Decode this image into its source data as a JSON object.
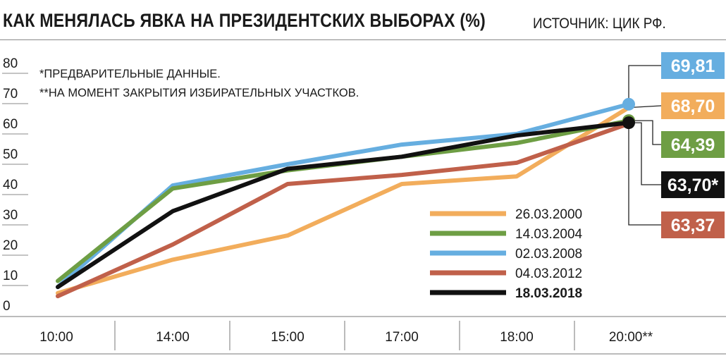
{
  "header": {
    "title": "КАК МЕНЯЛАСЬ ЯВКА НА ПРЕЗИДЕНТСКИХ ВЫБОРАХ (%)",
    "source": "ИСТОЧНИК: ЦИК РФ."
  },
  "notes": [
    "*ПРЕДВАРИТЕЛЬНЫЕ ДАННЫЕ.",
    "**НА МОМЕНТ ЗАКРЫТИЯ ИЗБИРАТЕЛЬНЫХ УЧАСТКОВ."
  ],
  "chart_data": {
    "type": "line",
    "title": "КАК МЕНЯЛАСЬ ЯВКА НА ПРЕЗИДЕНТСКИХ ВЫБОРАХ (%)",
    "categories": [
      "10:00",
      "14:00",
      "15:00",
      "17:00",
      "18:00",
      "20:00**"
    ],
    "y_ticks": [
      "0",
      "10",
      "20",
      "30",
      "40",
      "50",
      "60",
      "70",
      "80"
    ],
    "ylim": [
      0,
      80
    ],
    "grid": false,
    "legend_position": "bottom-right",
    "series": [
      {
        "name": "26.03.2000",
        "color": "#f2ad5c",
        "values": [
          7.5,
          18.5,
          26.5,
          43.5,
          46,
          68.7
        ],
        "final_label": "68,70",
        "bold": false
      },
      {
        "name": "14.03.2004",
        "color": "#6e9e44",
        "values": [
          11.5,
          42,
          48,
          52.5,
          57,
          64.39
        ],
        "final_label": "64,39",
        "bold": false
      },
      {
        "name": "02.03.2008",
        "color": "#66aee0",
        "values": [
          9.5,
          43,
          50,
          56.5,
          60,
          69.81
        ],
        "final_label": "69,81",
        "bold": false
      },
      {
        "name": "04.03.2012",
        "color": "#c0604a",
        "values": [
          6.5,
          23.5,
          43.5,
          46.5,
          50.5,
          63.37
        ],
        "final_label": "63,37",
        "bold": false
      },
      {
        "name": "18.03.2018",
        "color": "#111111",
        "values": [
          9.5,
          34.5,
          48.5,
          52.5,
          59.5,
          63.7
        ],
        "final_label": "63,70*",
        "bold": true
      }
    ]
  }
}
